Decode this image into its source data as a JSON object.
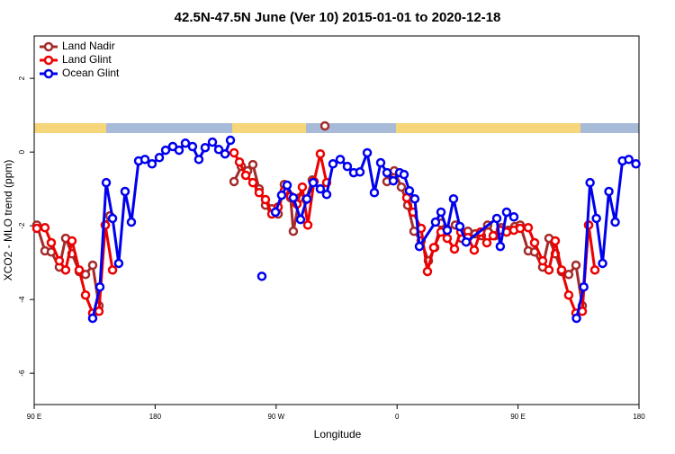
{
  "chart_data": {
    "type": "line",
    "title": "42.5N-47.5N June (Ver 10)   2015-01-01 to 2020-12-18",
    "x_label": "Longitude",
    "y_label": "XCO2 - MLO trend (ppm)",
    "xlim": [
      90,
      540
    ],
    "ylim": [
      -6.85,
      3.15
    ],
    "xticks": [
      {
        "value": 90,
        "label": "90 E"
      },
      180,
      {
        "value": 270,
        "label": "90 W"
      },
      {
        "value": 360,
        "label": "0"
      },
      {
        "value": 450,
        "label": "90 E"
      },
      {
        "value": 540,
        "label": "180"
      }
    ],
    "yticks": [
      -6,
      -4,
      -2,
      0,
      2
    ],
    "legend": "top-left",
    "series": [
      {
        "name": "Land Nadir",
        "color": "#a52a2a",
        "x": [
          92.0,
          98.0,
          102.7,
          108.7,
          113.4,
          118.1,
          123.5,
          128.2,
          133.5,
          138.2,
          142.9,
          146.3,
          null,
          238.7,
          244.1,
          248.8,
          252.7,
          257.4,
          262.1,
          266.8,
          271.5,
          276.1,
          280.8,
          282.8,
          287.5,
          292.2,
          296.9,
          null,
          306.3,
          null,
          352.5,
          357.9,
          363.2,
          367.9,
          372.6,
          377.9,
          383.3,
          388.0,
          392.7,
          397.3,
          403.4,
          408.0,
          412.7,
          418.1,
          422.8,
          427.4,
          432.8,
          437.5,
          442.9,
          447.6,
          451.6,
          457.6,
          462.3,
          468.3,
          473.0,
          477.7,
          482.4,
          487.7,
          493.1,
          497.8,
          502.5
        ],
        "values": [
          -1.98,
          -2.68,
          -2.71,
          -3.12,
          -2.34,
          -2.76,
          -3.24,
          -3.32,
          -3.07,
          -4.17,
          -1.98,
          -1.73,
          null,
          -0.8,
          -0.39,
          -0.51,
          -0.34,
          -1.0,
          -1.44,
          -1.54,
          -1.68,
          -0.88,
          -1.24,
          -2.15,
          -1.24,
          -1.29,
          -0.76,
          null,
          0.71,
          null,
          -0.8,
          -0.51,
          -0.95,
          -1.44,
          -2.15,
          -2.41,
          -2.95,
          -2.59,
          -1.93,
          -2.1,
          -1.98,
          -2.34,
          -2.15,
          -2.22,
          -2.27,
          -1.98,
          -2.27,
          -2.05,
          -2.12,
          -2.02,
          -1.98,
          -2.68,
          -2.71,
          -3.12,
          -2.34,
          -2.76,
          -3.24,
          -3.32,
          -3.07,
          -4.17,
          -1.98
        ]
      },
      {
        "name": "Land Glint",
        "color": "#ee0000",
        "x": [
          92.0,
          98.0,
          102.7,
          108.7,
          113.4,
          118.1,
          123.5,
          128.2,
          133.5,
          138.2,
          142.9,
          148.3,
          null,
          238.7,
          242.7,
          247.4,
          252.7,
          257.4,
          262.1,
          266.8,
          271.5,
          276.1,
          280.8,
          285.5,
          289.5,
          293.6,
          298.2,
          302.9,
          307.6,
          null,
          367.2,
          371.9,
          377.9,
          382.6,
          387.3,
          392.7,
          397.3,
          402.7,
          407.4,
          412.7,
          417.4,
          422.1,
          426.8,
          431.5,
          436.8,
          441.5,
          446.9,
          451.6,
          457.6,
          462.3,
          468.3,
          473.0,
          477.7,
          482.4,
          487.7,
          493.1,
          497.8,
          502.5,
          507.2
        ],
        "values": [
          -2.07,
          -2.05,
          -2.46,
          -2.95,
          -3.2,
          -2.41,
          -3.2,
          -3.88,
          -4.37,
          -4.32,
          -1.98,
          -3.2,
          null,
          -0.02,
          -0.27,
          -0.63,
          -0.83,
          -1.1,
          -1.29,
          -1.68,
          -1.49,
          -1.05,
          -1.2,
          -1.41,
          -0.95,
          -1.98,
          -0.8,
          -0.05,
          -0.83,
          null,
          -1.24,
          -1.63,
          -2.07,
          -3.24,
          -2.59,
          -2.17,
          -2.34,
          -2.63,
          -2.17,
          -2.32,
          -2.66,
          -2.17,
          -2.46,
          -2.27,
          -2.12,
          -2.17,
          -2.12,
          -2.07,
          -2.05,
          -2.46,
          -2.95,
          -3.2,
          -2.41,
          -3.2,
          -3.88,
          -4.37,
          -4.32,
          -1.98,
          -3.2
        ]
      },
      {
        "name": "Ocean Glint",
        "color": "#0000ee",
        "x": [
          133.5,
          138.9,
          143.6,
          148.3,
          152.9,
          157.6,
          162.3,
          167.7,
          172.4,
          177.7,
          183.1,
          187.8,
          193.1,
          197.8,
          202.5,
          207.8,
          212.5,
          217.2,
          222.6,
          227.3,
          232.0,
          236.0,
          null,
          259.4,
          null,
          269.5,
          274.1,
          278.2,
          282.8,
          288.2,
          292.9,
          297.6,
          302.9,
          307.6,
          312.3,
          317.7,
          323.0,
          327.7,
          332.4,
          337.8,
          343.1,
          347.8,
          352.5,
          357.2,
          361.9,
          365.2,
          369.2,
          373.2,
          376.6,
          388.6,
          392.7,
          397.3,
          402.0,
          406.7,
          411.4,
          434.2,
          436.8,
          441.5,
          446.9,
          null,
          493.5,
          498.9,
          503.6,
          508.3,
          512.9,
          517.6,
          522.3,
          527.7,
          532.4,
          537.7
        ],
        "values": [
          -4.51,
          -3.66,
          -0.83,
          -1.8,
          -3.02,
          -1.07,
          -1.9,
          -0.24,
          -0.2,
          -0.32,
          -0.15,
          0.05,
          0.15,
          0.05,
          0.24,
          0.15,
          -0.2,
          0.12,
          0.27,
          0.07,
          -0.05,
          0.32,
          null,
          -3.37,
          null,
          -1.63,
          -1.17,
          -0.9,
          -1.24,
          -1.83,
          -1.27,
          -0.83,
          -1.0,
          -1.15,
          -0.32,
          -0.2,
          -0.39,
          -0.56,
          -0.54,
          -0.02,
          -1.1,
          -0.29,
          -0.56,
          -0.78,
          -0.56,
          -0.61,
          -1.05,
          -1.27,
          -2.56,
          -1.9,
          -1.63,
          -2.12,
          -1.27,
          -2.02,
          -2.44,
          -1.8,
          -2.56,
          -1.63,
          -1.76,
          null,
          -4.51,
          -3.66,
          -0.83,
          -1.8,
          -3.02,
          -1.07,
          -1.9,
          -0.24,
          -0.2,
          -0.32
        ]
      }
    ]
  }
}
